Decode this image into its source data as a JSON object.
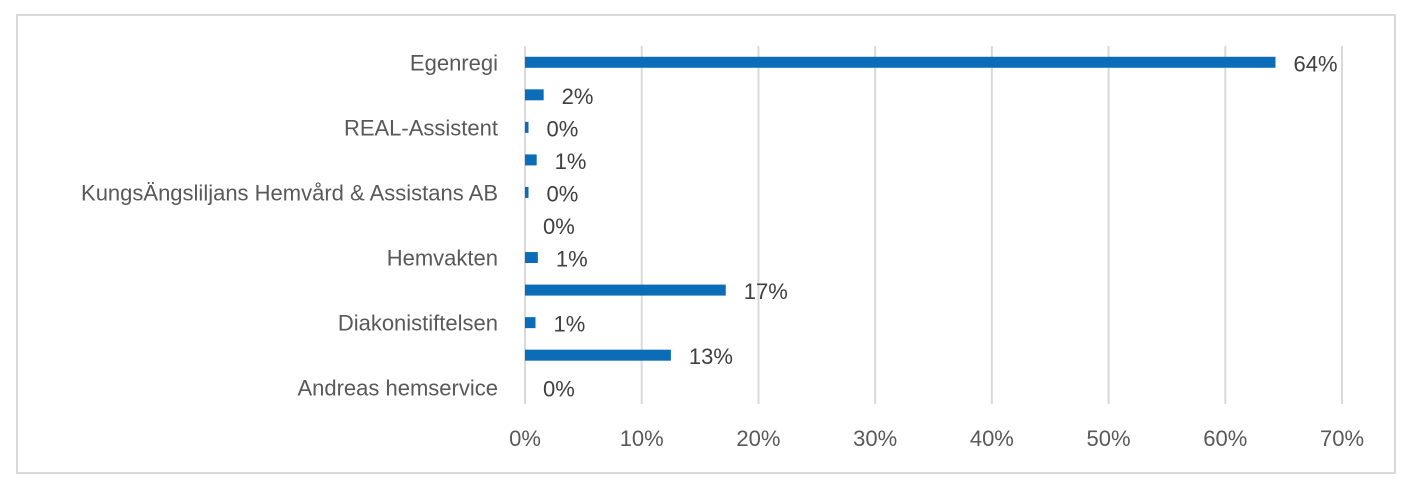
{
  "chart_data": {
    "type": "bar",
    "orientation": "horizontal",
    "bar_color": "#0b6db7",
    "categories": [
      "Egenregi",
      "",
      "REAL-Assistent",
      "",
      "KungsÄngsliljans Hemvård & Assistans AB",
      "",
      "Hemvakten",
      "",
      "Diakonistiftelsen",
      "",
      "Andreas hemservice"
    ],
    "values": [
      64.3,
      1.6,
      0.3,
      1.0,
      0.3,
      0.0,
      1.1,
      17.2,
      0.9,
      12.5,
      0.0
    ],
    "data_labels": [
      "64%",
      "2%",
      "0%",
      "1%",
      "0%",
      "0%",
      "1%",
      "17%",
      "1%",
      "13%",
      "0%"
    ],
    "xlim": [
      0,
      70
    ],
    "x_ticks": [
      "0%",
      "10%",
      "20%",
      "30%",
      "40%",
      "50%",
      "60%",
      "70%"
    ],
    "grid": "vertical",
    "legend": "none"
  }
}
